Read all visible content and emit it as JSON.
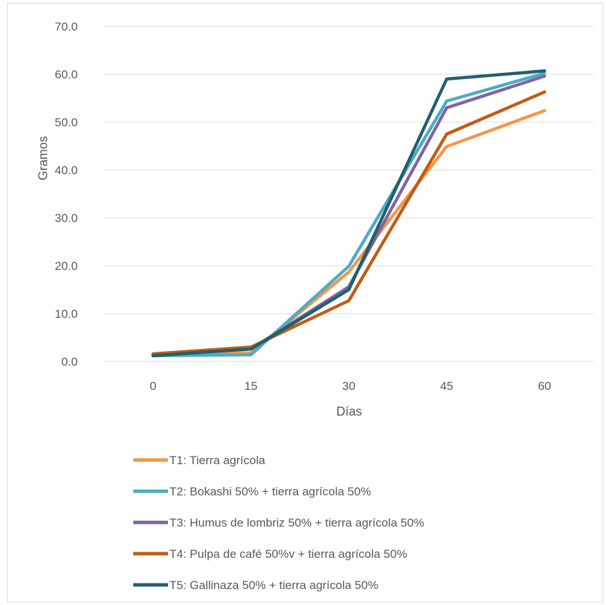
{
  "chart_data": {
    "type": "line",
    "title": "",
    "xlabel": "Días",
    "ylabel": "Gramos",
    "x": [
      0,
      15,
      30,
      45,
      60
    ],
    "categories": [
      "0",
      "15",
      "30",
      "45",
      "60"
    ],
    "yticks": [
      "0.0",
      "10.0",
      "20.0",
      "30.0",
      "40.0",
      "50.0",
      "60.0",
      "70.0"
    ],
    "ylim": [
      0,
      70
    ],
    "grid": true,
    "legend_position": "bottom",
    "series": [
      {
        "name": "T1: Tierra agrícola",
        "color": "#F79646",
        "values": [
          1.3,
          1.8,
          18.7,
          44.9,
          52.4
        ]
      },
      {
        "name": "T2: Bokashi 50% + tierra agrícola 50%",
        "color": "#4BACC6",
        "values": [
          1.2,
          1.4,
          19.9,
          54.4,
          60.2
        ]
      },
      {
        "name": "T3: Humus de lombriz 50% + tierra agrícola 50%",
        "color": "#8064A2",
        "values": [
          1.3,
          2.6,
          15.6,
          53.0,
          59.6
        ]
      },
      {
        "name": "T4: Pulpa de café 50%v + tierra agrícola 50%",
        "color": "#C55A11",
        "values": [
          1.6,
          3.0,
          12.7,
          47.5,
          56.3
        ]
      },
      {
        "name": "T5: Gallinaza 50% + tierra agrícola 50%",
        "color": "#215F6E",
        "values": [
          1.2,
          2.6,
          15.0,
          59.0,
          60.7
        ]
      }
    ]
  }
}
